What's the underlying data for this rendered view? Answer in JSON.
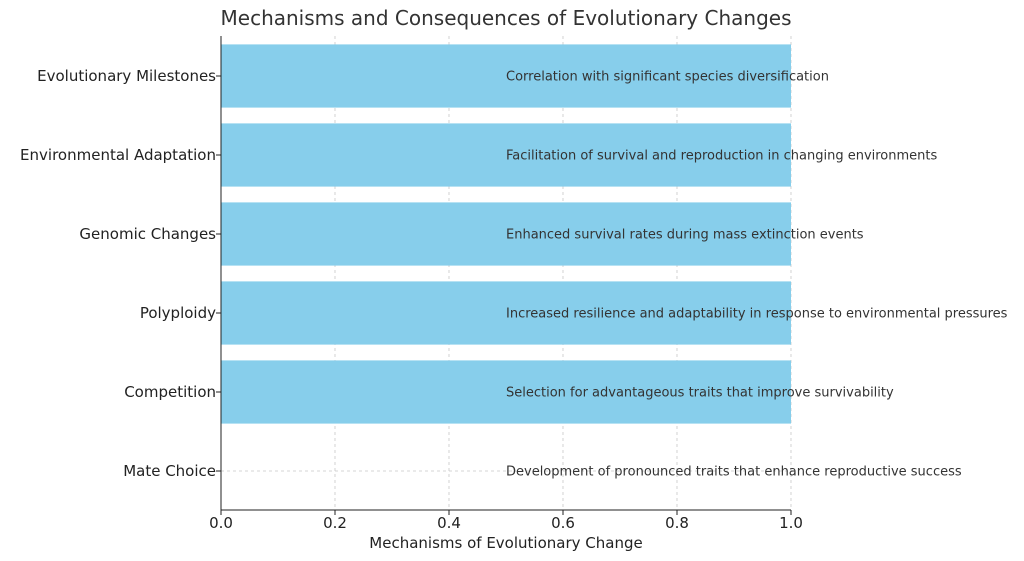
{
  "chart_data": {
    "type": "bar",
    "orientation": "horizontal",
    "title": "Mechanisms and Consequences of Evolutionary Changes",
    "xlabel": "Mechanisms of Evolutionary Change",
    "ylabel": "",
    "xlim": [
      0,
      1
    ],
    "x_ticks": [
      "0.0",
      "0.2",
      "0.4",
      "0.6",
      "0.8",
      "1.0"
    ],
    "grid": true,
    "bar_color": "#87ceeb",
    "categories": [
      "Mate Choice",
      "Competition",
      "Polyploidy",
      "Genomic Changes",
      "Environmental Adaptation",
      "Evolutionary Milestones"
    ],
    "values": [
      0,
      1,
      1,
      1,
      1,
      1
    ],
    "annotations": [
      "Development of pronounced traits that enhance reproductive success",
      "Selection for advantageous traits that improve survivability",
      "Increased resilience and adaptability in response to environmental pressures",
      "Enhanced survival rates during mass extinction events",
      "Facilitation of survival and reproduction in changing environments",
      "Correlation with significant species diversification"
    ],
    "annotation_x": 0.5
  }
}
